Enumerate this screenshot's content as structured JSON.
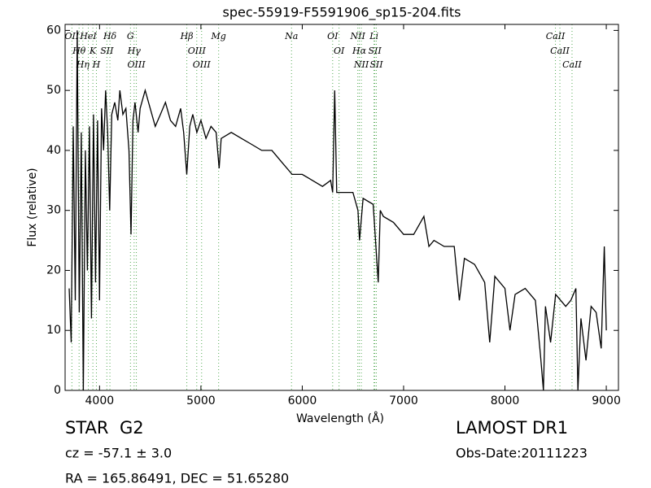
{
  "chart_data": {
    "type": "line",
    "title": "spec-55919-F5591906_sp15-204.fits",
    "x_label": "Wavelength (Å)",
    "y_label": "Flux (relative)",
    "color": "#000000",
    "line_color": "#55aa55",
    "xlim": [
      3660,
      9120
    ],
    "ylim": [
      0,
      61
    ],
    "xticks": [
      4000,
      5000,
      6000,
      7000,
      8000,
      9000
    ],
    "yticks": [
      0,
      10,
      20,
      30,
      40,
      50,
      60
    ],
    "x": [
      3700,
      3720,
      3740,
      3760,
      3780,
      3800,
      3820,
      3840,
      3860,
      3880,
      3900,
      3920,
      3940,
      3960,
      3980,
      4000,
      4020,
      4040,
      4060,
      4080,
      4100,
      4120,
      4150,
      4180,
      4200,
      4230,
      4260,
      4290,
      4310,
      4330,
      4350,
      4380,
      4400,
      4450,
      4500,
      4550,
      4600,
      4650,
      4700,
      4750,
      4800,
      4830,
      4860,
      4890,
      4920,
      4960,
      5000,
      5050,
      5100,
      5150,
      5180,
      5200,
      5300,
      5400,
      5500,
      5600,
      5700,
      5800,
      5900,
      6000,
      6100,
      6200,
      6280,
      6300,
      6320,
      6340,
      6400,
      6500,
      6550,
      6565,
      6600,
      6700,
      6750,
      6770,
      6800,
      6900,
      7000,
      7100,
      7200,
      7250,
      7300,
      7400,
      7500,
      7550,
      7600,
      7700,
      7800,
      7850,
      7900,
      8000,
      8050,
      8100,
      8200,
      8300,
      8350,
      8380,
      8400,
      8450,
      8500,
      8550,
      8600,
      8650,
      8700,
      8720,
      8750,
      8800,
      8850,
      8900,
      8950,
      8980,
      9000
    ],
    "values": [
      17,
      8,
      44,
      15,
      60,
      13,
      43,
      0,
      40,
      20,
      44,
      12,
      46,
      18,
      45,
      15,
      47,
      40,
      50,
      43,
      30,
      46,
      48,
      45,
      50,
      46,
      47,
      40,
      26,
      45,
      48,
      43,
      47,
      50,
      47,
      44,
      46,
      48,
      45,
      44,
      47,
      43,
      36,
      44,
      46,
      43,
      45,
      42,
      44,
      43,
      37,
      42,
      43,
      42,
      41,
      40,
      40,
      38,
      36,
      36,
      35,
      34,
      35,
      33,
      50,
      33,
      33,
      33,
      30,
      25,
      32,
      31,
      18,
      30,
      29,
      28,
      26,
      26,
      29,
      24,
      25,
      24,
      24,
      15,
      22,
      21,
      18,
      8,
      19,
      17,
      10,
      16,
      17,
      15,
      6,
      0,
      14,
      8,
      16,
      15,
      14,
      15,
      17,
      0,
      12,
      5,
      14,
      13,
      7,
      24,
      10
    ],
    "lines": [
      {
        "wavelength": 3727,
        "label": "OII"
      },
      {
        "wavelength": 3798,
        "label": "Hθ"
      },
      {
        "wavelength": 3835,
        "label": "Hη"
      },
      {
        "wavelength": 3889,
        "label": "HeI"
      },
      {
        "wavelength": 3934,
        "label": "K"
      },
      {
        "wavelength": 3969,
        "label": "H"
      },
      {
        "wavelength": 4072,
        "label": "SII"
      },
      {
        "wavelength": 4102,
        "label": "Hδ"
      },
      {
        "wavelength": 4305,
        "label": "G"
      },
      {
        "wavelength": 4341,
        "label": "Hγ"
      },
      {
        "wavelength": 4363,
        "label": "OIII"
      },
      {
        "wavelength": 4861,
        "label": "Hβ"
      },
      {
        "wavelength": 4959,
        "label": "OIII"
      },
      {
        "wavelength": 5007,
        "label": "OIII"
      },
      {
        "wavelength": 5175,
        "label": "Mg"
      },
      {
        "wavelength": 5894,
        "label": "Na"
      },
      {
        "wavelength": 6300,
        "label": "OI"
      },
      {
        "wavelength": 6363,
        "label": "OI"
      },
      {
        "wavelength": 6548,
        "label": "NII"
      },
      {
        "wavelength": 6563,
        "label": "Hα"
      },
      {
        "wavelength": 6583,
        "label": "NII"
      },
      {
        "wavelength": 6708,
        "label": "Li"
      },
      {
        "wavelength": 6716,
        "label": "SII"
      },
      {
        "wavelength": 6731,
        "label": "SII"
      },
      {
        "wavelength": 8498,
        "label": "CaII"
      },
      {
        "wavelength": 8542,
        "label": "CaII"
      },
      {
        "wavelength": 8662,
        "label": "CaII"
      }
    ],
    "annotations": {
      "object_class": "STAR",
      "subclass": "G2",
      "redshift": "cz = -57.1 ± 3.0",
      "survey": "LAMOST DR1",
      "obs_date": "Obs-Date:20111223",
      "coords": "RA = 165.86491, DEC = 51.65280"
    }
  }
}
